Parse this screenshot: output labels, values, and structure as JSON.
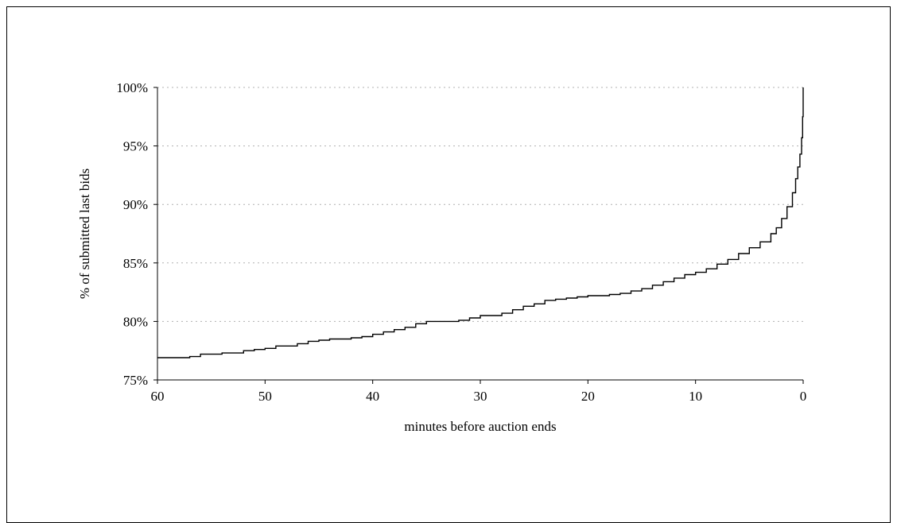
{
  "chart_data": {
    "type": "line",
    "title": "",
    "xlabel": "minutes before auction ends",
    "ylabel": "% of submitted last bids",
    "xlim": [
      60,
      0
    ],
    "ylim": [
      75,
      100
    ],
    "x_ticks": [
      60,
      50,
      40,
      30,
      20,
      10,
      0
    ],
    "x_tick_labels": [
      "60",
      "50",
      "40",
      "30",
      "20",
      "10",
      "0"
    ],
    "y_ticks": [
      75,
      80,
      85,
      90,
      95,
      100
    ],
    "y_tick_labels": [
      "75%",
      "80%",
      "85%",
      "90%",
      "95%",
      "100%"
    ],
    "grid": {
      "horizontal": true,
      "style": "dotted"
    },
    "legend": "none",
    "colors": {
      "line": "#000000",
      "grid": "#b0b0b0",
      "axis": "#000000"
    },
    "series": [
      {
        "x": [
          60,
          58,
          57,
          56,
          54,
          52,
          51,
          50,
          49,
          47,
          46,
          45,
          44,
          43,
          42,
          41,
          40,
          39,
          38,
          37,
          36,
          35,
          34,
          33,
          32,
          31,
          30,
          29,
          28,
          27,
          26,
          25,
          24,
          23,
          22,
          21,
          20,
          19,
          18,
          17,
          16,
          15,
          14,
          13,
          12,
          11,
          10,
          9,
          8,
          7,
          6,
          5,
          4,
          3,
          2.5,
          2,
          1.5,
          1,
          0.7,
          0.5,
          0.3,
          0.15,
          0.05,
          0
        ],
        "values": [
          76.9,
          76.9,
          77.0,
          77.2,
          77.3,
          77.5,
          77.6,
          77.7,
          77.9,
          78.1,
          78.3,
          78.4,
          78.5,
          78.5,
          78.6,
          78.7,
          78.9,
          79.1,
          79.3,
          79.5,
          79.8,
          80.0,
          80.0,
          80.0,
          80.1,
          80.3,
          80.5,
          80.5,
          80.7,
          81.0,
          81.3,
          81.5,
          81.8,
          81.9,
          82.0,
          82.1,
          82.2,
          82.2,
          82.3,
          82.4,
          82.6,
          82.8,
          83.1,
          83.4,
          83.7,
          84.0,
          84.2,
          84.5,
          84.9,
          85.3,
          85.8,
          86.3,
          86.8,
          87.5,
          88.0,
          88.8,
          89.8,
          91.0,
          92.2,
          93.2,
          94.3,
          95.7,
          97.5,
          100.0
        ]
      }
    ]
  }
}
